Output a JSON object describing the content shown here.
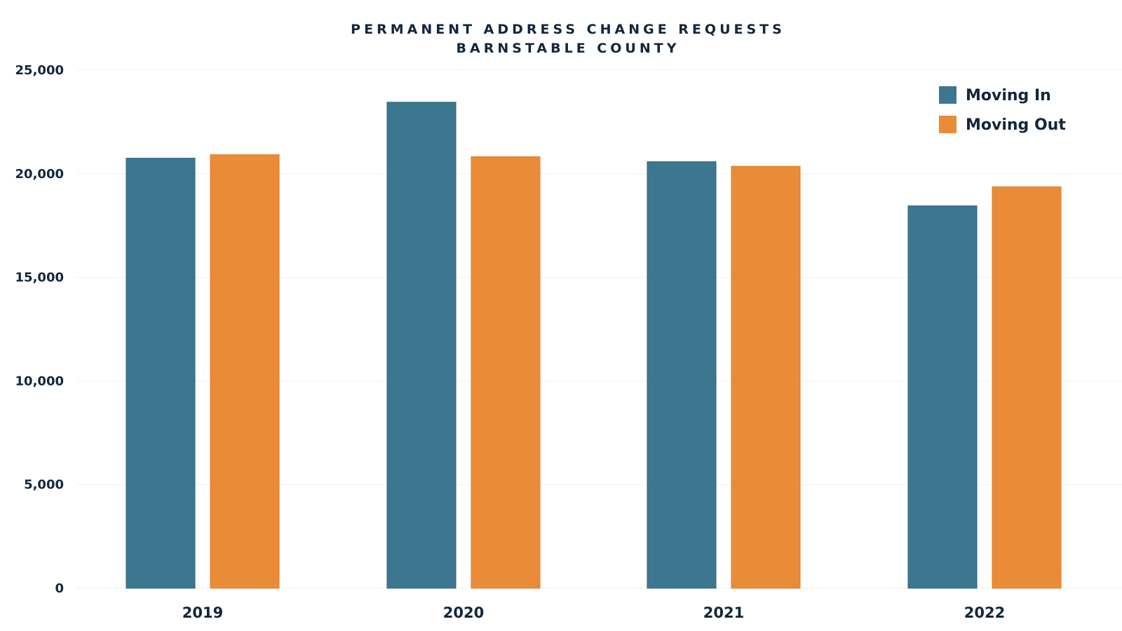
{
  "chart_data": {
    "type": "bar",
    "title": "PERMANENT ADDRESS CHANGE REQUESTS",
    "subtitle": "BARNSTABLE COUNTY",
    "categories": [
      "2019",
      "2020",
      "2021",
      "2022"
    ],
    "series": [
      {
        "name": "Moving In",
        "color": "#3d768f",
        "values": [
          20750,
          23450,
          20580,
          18450
        ]
      },
      {
        "name": "Moving Out",
        "color": "#ea8c37",
        "values": [
          20920,
          20820,
          20360,
          19370
        ]
      }
    ],
    "y_ticks": [
      "0",
      "5,000",
      "10,000",
      "15,000",
      "20,000",
      "25,000"
    ],
    "y_tick_values": [
      0,
      5000,
      10000,
      15000,
      20000,
      25000
    ],
    "ylim": [
      0,
      25000
    ],
    "xlabel": "",
    "ylabel": "",
    "grid": true,
    "legend_position": "top-right"
  }
}
